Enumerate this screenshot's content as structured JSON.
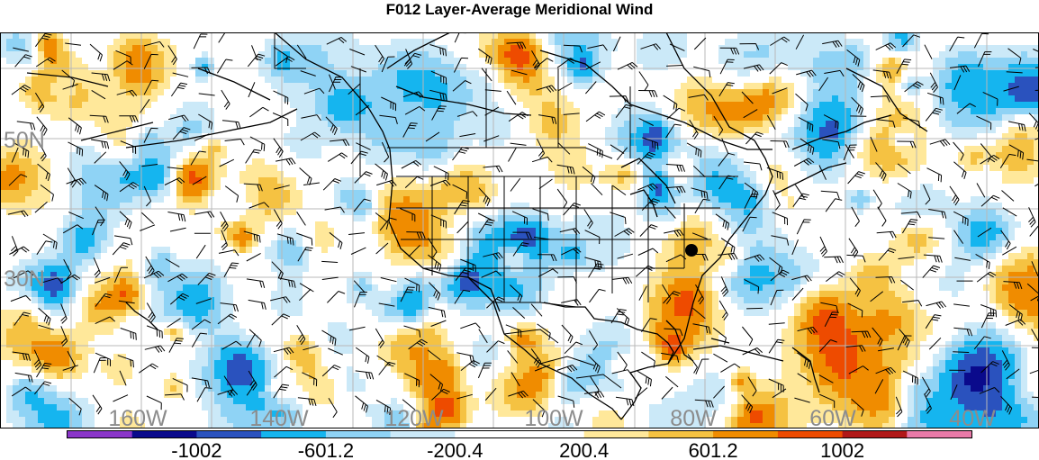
{
  "title": "F012 Layer-Average Meridional Wind",
  "lat_labels": [
    "50N",
    "30N"
  ],
  "lon_labels": [
    "160W",
    "140W",
    "120W",
    "100W",
    "80W",
    "60W",
    "40W"
  ],
  "colorbar": {
    "colors": [
      "#8a35c9",
      "#0a0a8c",
      "#2a52be",
      "#15b5ef",
      "#8fd3f5",
      "#cbe9f8",
      "#ffffff",
      "#ffffff",
      "#ffe89a",
      "#f5c242",
      "#f08c00",
      "#ee4b00",
      "#b01818",
      "#e87aa8"
    ],
    "labels": [
      "-1002",
      "-601.2",
      "-200.4",
      "200.4",
      "601.2",
      "1002"
    ],
    "label_after_index": [
      1,
      3,
      5,
      7,
      9,
      11
    ]
  },
  "station_marker": "black-dot"
}
